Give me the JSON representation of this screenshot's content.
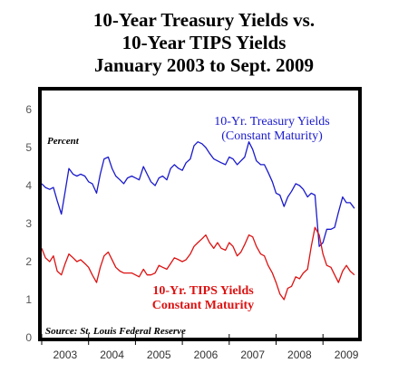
{
  "chart_data": {
    "type": "line",
    "title": [
      "10-Year Treasury Yields vs.",
      "10-Year TIPS Yields",
      "January 2003 to Sept. 2009"
    ],
    "ylabel": "Percent",
    "source": "Source: St. Louis Federal Reserve",
    "ylim": [
      0,
      6
    ],
    "yticks": [
      "0",
      "1",
      "2",
      "3",
      "4",
      "5",
      "6"
    ],
    "xlim": [
      2003.0,
      2009.75
    ],
    "xtick_labels": [
      "2003",
      "2004",
      "2005",
      "2006",
      "2007",
      "2008",
      "2009"
    ],
    "grid": false,
    "series": [
      {
        "label_lines": [
          "10-Yr. Treasury Yields",
          "(Constant Maturity)"
        ],
        "color": "#1a1acc",
        "points": [
          [
            2003.0,
            4.05
          ],
          [
            2003.08,
            3.95
          ],
          [
            2003.17,
            3.9
          ],
          [
            2003.25,
            3.95
          ],
          [
            2003.33,
            3.6
          ],
          [
            2003.42,
            3.25
          ],
          [
            2003.5,
            3.85
          ],
          [
            2003.58,
            4.45
          ],
          [
            2003.67,
            4.3
          ],
          [
            2003.75,
            4.25
          ],
          [
            2003.83,
            4.3
          ],
          [
            2003.92,
            4.25
          ],
          [
            2004.0,
            4.1
          ],
          [
            2004.08,
            4.05
          ],
          [
            2004.17,
            3.8
          ],
          [
            2004.25,
            4.3
          ],
          [
            2004.33,
            4.7
          ],
          [
            2004.42,
            4.75
          ],
          [
            2004.5,
            4.45
          ],
          [
            2004.58,
            4.25
          ],
          [
            2004.67,
            4.15
          ],
          [
            2004.75,
            4.05
          ],
          [
            2004.83,
            4.2
          ],
          [
            2004.92,
            4.25
          ],
          [
            2005.0,
            4.2
          ],
          [
            2005.08,
            4.15
          ],
          [
            2005.17,
            4.5
          ],
          [
            2005.25,
            4.3
          ],
          [
            2005.33,
            4.1
          ],
          [
            2005.42,
            4.0
          ],
          [
            2005.5,
            4.2
          ],
          [
            2005.58,
            4.25
          ],
          [
            2005.67,
            4.15
          ],
          [
            2005.75,
            4.45
          ],
          [
            2005.83,
            4.55
          ],
          [
            2005.92,
            4.45
          ],
          [
            2006.0,
            4.4
          ],
          [
            2006.08,
            4.6
          ],
          [
            2006.17,
            4.7
          ],
          [
            2006.25,
            5.05
          ],
          [
            2006.33,
            5.15
          ],
          [
            2006.42,
            5.1
          ],
          [
            2006.5,
            5.0
          ],
          [
            2006.58,
            4.85
          ],
          [
            2006.67,
            4.7
          ],
          [
            2006.75,
            4.65
          ],
          [
            2006.83,
            4.6
          ],
          [
            2006.92,
            4.55
          ],
          [
            2007.0,
            4.75
          ],
          [
            2007.08,
            4.7
          ],
          [
            2007.17,
            4.55
          ],
          [
            2007.25,
            4.65
          ],
          [
            2007.33,
            4.75
          ],
          [
            2007.42,
            5.15
          ],
          [
            2007.5,
            4.95
          ],
          [
            2007.58,
            4.65
          ],
          [
            2007.67,
            4.55
          ],
          [
            2007.75,
            4.55
          ],
          [
            2007.83,
            4.35
          ],
          [
            2007.92,
            4.1
          ],
          [
            2008.0,
            3.8
          ],
          [
            2008.08,
            3.75
          ],
          [
            2008.17,
            3.45
          ],
          [
            2008.25,
            3.7
          ],
          [
            2008.33,
            3.85
          ],
          [
            2008.42,
            4.05
          ],
          [
            2008.5,
            4.0
          ],
          [
            2008.58,
            3.9
          ],
          [
            2008.67,
            3.7
          ],
          [
            2008.75,
            3.8
          ],
          [
            2008.83,
            3.75
          ],
          [
            2008.92,
            2.4
          ],
          [
            2009.0,
            2.5
          ],
          [
            2009.08,
            2.85
          ],
          [
            2009.17,
            2.85
          ],
          [
            2009.25,
            2.9
          ],
          [
            2009.33,
            3.3
          ],
          [
            2009.42,
            3.7
          ],
          [
            2009.5,
            3.55
          ],
          [
            2009.58,
            3.55
          ],
          [
            2009.67,
            3.4
          ]
        ]
      },
      {
        "label_lines": [
          "10-Yr. TIPS Yields",
          "Constant Maturity"
        ],
        "color": "#dd1111",
        "points": [
          [
            2003.0,
            2.35
          ],
          [
            2003.08,
            2.1
          ],
          [
            2003.17,
            2.0
          ],
          [
            2003.25,
            2.15
          ],
          [
            2003.33,
            1.75
          ],
          [
            2003.42,
            1.65
          ],
          [
            2003.5,
            1.95
          ],
          [
            2003.58,
            2.2
          ],
          [
            2003.67,
            2.1
          ],
          [
            2003.75,
            2.0
          ],
          [
            2003.83,
            2.05
          ],
          [
            2003.92,
            1.95
          ],
          [
            2004.0,
            1.85
          ],
          [
            2004.08,
            1.65
          ],
          [
            2004.17,
            1.45
          ],
          [
            2004.25,
            1.85
          ],
          [
            2004.33,
            2.15
          ],
          [
            2004.42,
            2.25
          ],
          [
            2004.5,
            2.05
          ],
          [
            2004.58,
            1.85
          ],
          [
            2004.67,
            1.75
          ],
          [
            2004.75,
            1.7
          ],
          [
            2004.83,
            1.7
          ],
          [
            2004.92,
            1.7
          ],
          [
            2005.0,
            1.65
          ],
          [
            2005.08,
            1.6
          ],
          [
            2005.17,
            1.8
          ],
          [
            2005.25,
            1.65
          ],
          [
            2005.33,
            1.65
          ],
          [
            2005.42,
            1.7
          ],
          [
            2005.5,
            1.9
          ],
          [
            2005.58,
            1.85
          ],
          [
            2005.67,
            1.8
          ],
          [
            2005.75,
            1.95
          ],
          [
            2005.83,
            2.1
          ],
          [
            2005.92,
            2.05
          ],
          [
            2006.0,
            2.0
          ],
          [
            2006.08,
            2.05
          ],
          [
            2006.17,
            2.2
          ],
          [
            2006.25,
            2.4
          ],
          [
            2006.33,
            2.5
          ],
          [
            2006.42,
            2.6
          ],
          [
            2006.5,
            2.7
          ],
          [
            2006.58,
            2.5
          ],
          [
            2006.67,
            2.35
          ],
          [
            2006.75,
            2.5
          ],
          [
            2006.83,
            2.35
          ],
          [
            2006.92,
            2.3
          ],
          [
            2007.0,
            2.5
          ],
          [
            2007.08,
            2.4
          ],
          [
            2007.17,
            2.15
          ],
          [
            2007.25,
            2.25
          ],
          [
            2007.33,
            2.45
          ],
          [
            2007.42,
            2.7
          ],
          [
            2007.5,
            2.65
          ],
          [
            2007.58,
            2.4
          ],
          [
            2007.67,
            2.2
          ],
          [
            2007.75,
            2.15
          ],
          [
            2007.83,
            1.9
          ],
          [
            2007.92,
            1.7
          ],
          [
            2008.0,
            1.45
          ],
          [
            2008.08,
            1.15
          ],
          [
            2008.17,
            1.0
          ],
          [
            2008.25,
            1.3
          ],
          [
            2008.33,
            1.35
          ],
          [
            2008.42,
            1.6
          ],
          [
            2008.5,
            1.55
          ],
          [
            2008.58,
            1.7
          ],
          [
            2008.67,
            1.8
          ],
          [
            2008.75,
            2.4
          ],
          [
            2008.83,
            2.9
          ],
          [
            2008.92,
            2.7
          ],
          [
            2009.0,
            2.2
          ],
          [
            2009.08,
            1.9
          ],
          [
            2009.17,
            1.85
          ],
          [
            2009.25,
            1.65
          ],
          [
            2009.33,
            1.45
          ],
          [
            2009.42,
            1.75
          ],
          [
            2009.5,
            1.9
          ],
          [
            2009.58,
            1.75
          ],
          [
            2009.67,
            1.65
          ]
        ]
      }
    ]
  }
}
